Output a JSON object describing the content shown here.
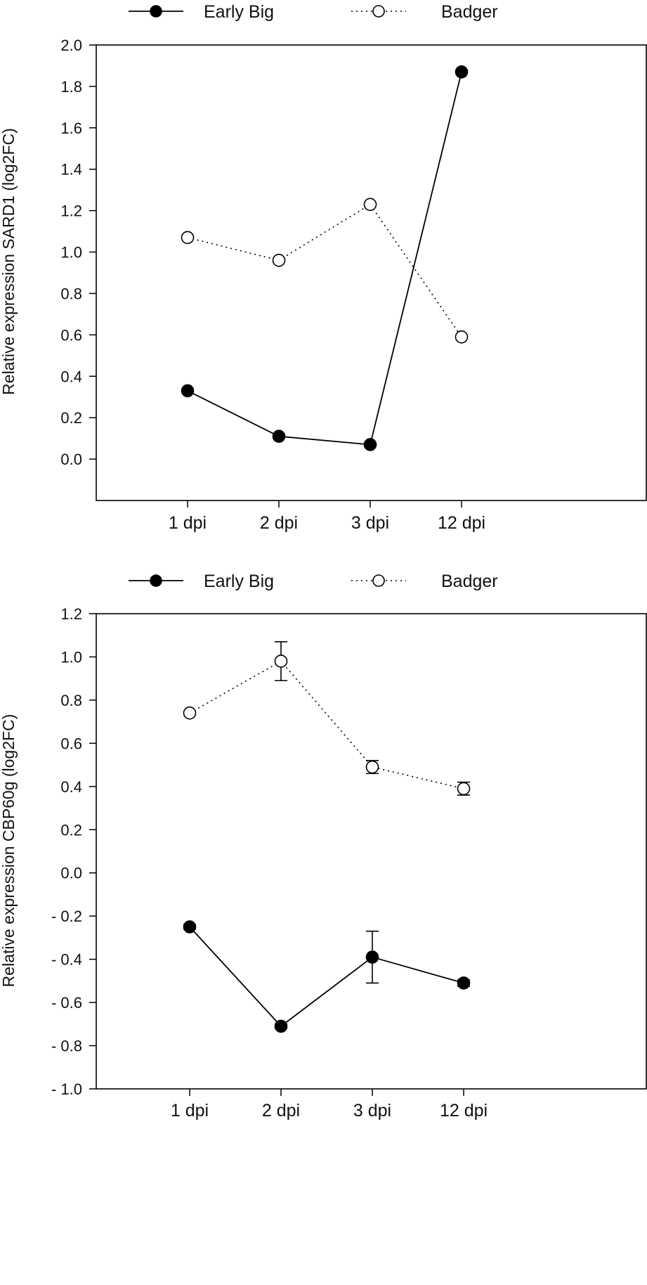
{
  "chart_data": [
    {
      "type": "line",
      "title": "",
      "xlabel": "",
      "ylabel": "Relative expression SARD1 (log2FC)",
      "categories": [
        "1 dpi",
        "2 dpi",
        "3 dpi",
        "12 dpi"
      ],
      "ylim": [
        -0.2,
        2.0
      ],
      "yticks": [
        0.0,
        0.2,
        0.4,
        0.6,
        0.8,
        1.0,
        1.2,
        1.4,
        1.6,
        1.8,
        2.0
      ],
      "ytick_labels": [
        "0.0",
        "0.2",
        "0.4",
        "0.6",
        "0.8",
        "1.0",
        "1.2",
        "1.4",
        "1.6",
        "1.8",
        "2.0"
      ],
      "legend_position": "top",
      "grid": false,
      "series": [
        {
          "name": "Early Big",
          "marker": "filled-circle",
          "line": "solid",
          "values": [
            0.33,
            0.11,
            0.07,
            1.87
          ]
        },
        {
          "name": "Badger",
          "marker": "open-circle",
          "line": "dotted",
          "values": [
            1.07,
            0.96,
            1.23,
            0.59
          ]
        }
      ]
    },
    {
      "type": "line",
      "title": "",
      "xlabel": "",
      "ylabel": "Relative expression CBP60g (log2FC)",
      "categories": [
        "1 dpi",
        "2 dpi",
        "3 dpi",
        "12 dpi"
      ],
      "ylim": [
        -1.0,
        1.2
      ],
      "yticks": [
        -1.0,
        -0.8,
        -0.6,
        -0.4,
        -0.2,
        0.0,
        0.2,
        0.4,
        0.6,
        0.8,
        1.0,
        1.2
      ],
      "ytick_labels": [
        "- 1.0",
        "- 0.8",
        "- 0.6",
        "- 0.4",
        "- 0.2",
        "0.0",
        "0.2",
        "0.4",
        "0.6",
        "0.8",
        "1.0",
        "1.2"
      ],
      "legend_position": "top",
      "grid": false,
      "series": [
        {
          "name": "Early Big",
          "marker": "filled-circle",
          "line": "solid",
          "values": [
            -0.25,
            -0.71,
            -0.39,
            -0.51
          ],
          "errors": [
            0.01,
            0.01,
            0.12,
            0.015
          ]
        },
        {
          "name": "Badger",
          "marker": "open-circle",
          "line": "dotted",
          "values": [
            0.74,
            0.98,
            0.49,
            0.39
          ],
          "errors": [
            0.005,
            0.09,
            0.03,
            0.03
          ]
        }
      ]
    }
  ]
}
